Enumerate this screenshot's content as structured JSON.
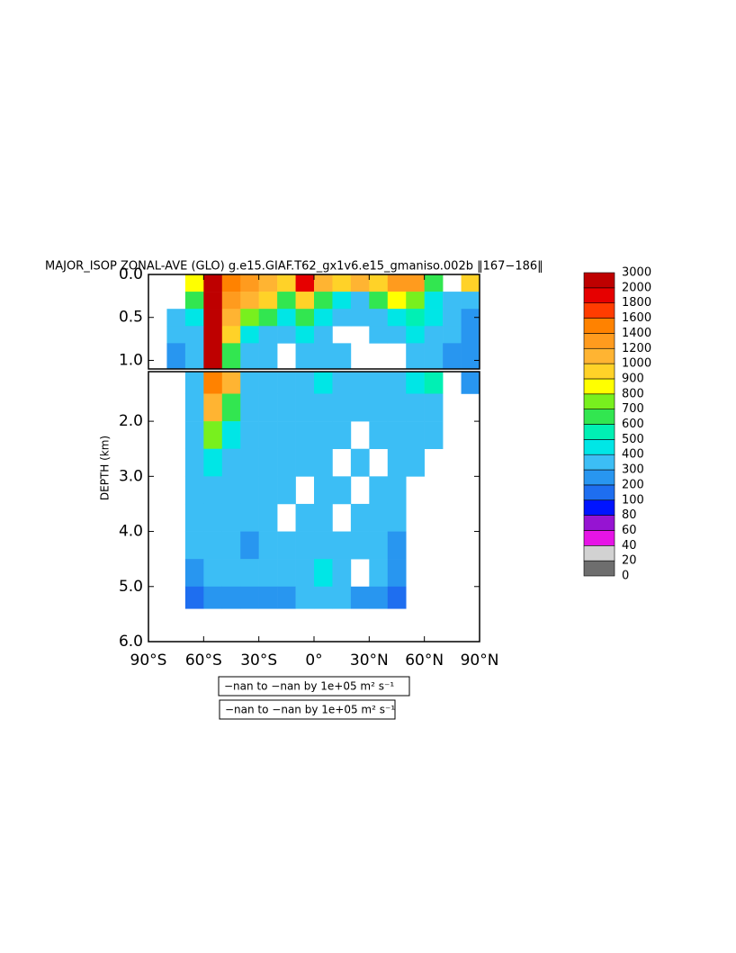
{
  "chart_data": {
    "type": "heatmap",
    "title": "MAJOR_ISOP ZONAL-AVE (GLO) g.e15.GIAF.T62_gx1v6.e15_gmaniso.002b ‖167−186‖",
    "y_label": "DEPTH (km)",
    "notes": [
      "−nan to −nan by 1e+05 m² s⁻¹",
      "−nan to −nan by 1e+05 m² s⁻¹"
    ],
    "xlim": [
      -90,
      90
    ],
    "xticks": [
      {
        "value": -90,
        "label": "90°S"
      },
      {
        "value": -60,
        "label": "60°S"
      },
      {
        "value": -30,
        "label": "30°S"
      },
      {
        "value": 0,
        "label": "0°"
      },
      {
        "value": 30,
        "label": "30°N"
      },
      {
        "value": 60,
        "label": "60°N"
      },
      {
        "value": 90,
        "label": "90°N"
      }
    ],
    "x_edges": [
      -90,
      -80,
      -70,
      -60,
      -50,
      -40,
      -30,
      -20,
      -10,
      0,
      10,
      20,
      30,
      40,
      50,
      60,
      70,
      80,
      90
    ],
    "levels": [
      0,
      20,
      40,
      60,
      80,
      100,
      200,
      300,
      400,
      500,
      600,
      700,
      800,
      900,
      1000,
      1200,
      1400,
      1600,
      1800,
      2000,
      3000
    ],
    "colors": [
      "#6e6e6e",
      "#d2d2d2",
      "#e614e6",
      "#9614d2",
      "#0014ff",
      "#1e6ef0",
      "#2896f0",
      "#3cbef5",
      "#00e6e6",
      "#00f0b4",
      "#32e650",
      "#78f01e",
      "#ffff00",
      "#ffd228",
      "#ffb432",
      "#ff9b1e",
      "#ff8200",
      "#ff3c00",
      "#e60000",
      "#be0000"
    ],
    "panels": [
      {
        "ylim": [
          0,
          1.1
        ],
        "yticks": [
          {
            "value": 0,
            "label": "0.0"
          },
          {
            "value": 0.5,
            "label": "0.5"
          },
          {
            "value": 1,
            "label": "1.0"
          }
        ],
        "y_edges": [
          0,
          0.2,
          0.4,
          0.6,
          0.8,
          1.1
        ],
        "values": [
          [
            null,
            null,
            800,
            2000,
            1400,
            1200,
            1000,
            900,
            1800,
            1000,
            900,
            1000,
            900,
            1200,
            1200,
            600,
            null,
            900
          ],
          [
            null,
            null,
            600,
            2000,
            1200,
            1000,
            900,
            600,
            900,
            600,
            400,
            300,
            600,
            800,
            700,
            400,
            300,
            300
          ],
          [
            null,
            300,
            400,
            2000,
            1000,
            700,
            600,
            400,
            600,
            400,
            300,
            300,
            300,
            400,
            500,
            400,
            300,
            200
          ],
          [
            null,
            300,
            300,
            2000,
            900,
            400,
            300,
            300,
            400,
            300,
            null,
            null,
            300,
            300,
            400,
            300,
            300,
            200
          ],
          [
            null,
            200,
            300,
            2000,
            600,
            300,
            300,
            null,
            300,
            300,
            300,
            null,
            null,
            null,
            300,
            300,
            200,
            200
          ]
        ]
      },
      {
        "ylim": [
          1.1,
          6
        ],
        "yticks": [
          {
            "value": 2,
            "label": "2.0"
          },
          {
            "value": 3,
            "label": "3.0"
          },
          {
            "value": 4,
            "label": "4.0"
          },
          {
            "value": 5,
            "label": "5.0"
          },
          {
            "value": 6,
            "label": "6.0"
          }
        ],
        "y_edges": [
          1.1,
          1.5,
          2,
          2.5,
          3,
          3.5,
          4,
          4.5,
          5,
          5.4
        ],
        "values": [
          [
            null,
            null,
            300,
            1400,
            1000,
            300,
            300,
            300,
            300,
            400,
            300,
            300,
            300,
            300,
            400,
            500,
            null,
            200
          ],
          [
            null,
            null,
            300,
            1000,
            600,
            300,
            300,
            300,
            300,
            300,
            300,
            300,
            300,
            300,
            300,
            300,
            null,
            null
          ],
          [
            null,
            null,
            300,
            700,
            400,
            300,
            300,
            300,
            300,
            300,
            300,
            null,
            300,
            300,
            300,
            300,
            null,
            null
          ],
          [
            null,
            null,
            300,
            400,
            300,
            300,
            300,
            300,
            300,
            300,
            null,
            300,
            null,
            300,
            300,
            null,
            null,
            null
          ],
          [
            null,
            null,
            300,
            300,
            300,
            300,
            300,
            300,
            null,
            300,
            300,
            null,
            300,
            300,
            null,
            null,
            null,
            null
          ],
          [
            null,
            null,
            300,
            300,
            300,
            300,
            300,
            null,
            300,
            300,
            null,
            300,
            300,
            300,
            null,
            null,
            null,
            null
          ],
          [
            null,
            null,
            300,
            300,
            300,
            200,
            300,
            300,
            300,
            300,
            300,
            300,
            300,
            200,
            null,
            null,
            null,
            null
          ],
          [
            null,
            null,
            200,
            300,
            300,
            300,
            300,
            300,
            300,
            400,
            300,
            null,
            300,
            200,
            null,
            null,
            null,
            null
          ],
          [
            null,
            null,
            100,
            200,
            200,
            200,
            200,
            200,
            300,
            300,
            300,
            200,
            200,
            100,
            null,
            null,
            null,
            null
          ]
        ]
      }
    ]
  }
}
